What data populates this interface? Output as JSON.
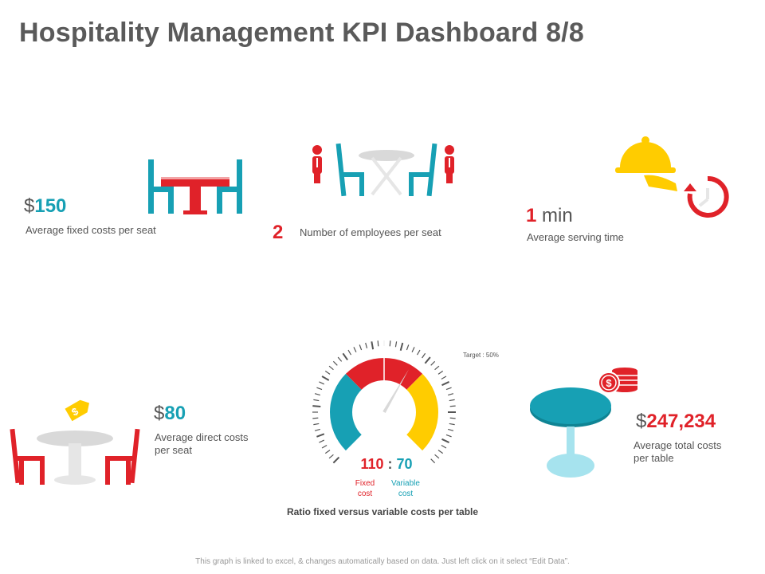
{
  "title": "Hospitality Management KPI Dashboard 8/8",
  "colors": {
    "teal": "#17a0b4",
    "red": "#e02229",
    "yellow": "#ffcc00",
    "grey": "#d9d9d9"
  },
  "kpis": {
    "fixed_cost_per_seat": {
      "currency": "$",
      "value": "150",
      "label": "Average fixed costs per seat",
      "icon": "dining-table-chairs-icon"
    },
    "employees_per_seat": {
      "value": "2",
      "label": "Number of employees per seat",
      "icon": "staff-table-icon"
    },
    "serving_time": {
      "value": "1",
      "unit": " min",
      "label": "Average serving time",
      "icon": "serving-cloche-icon"
    },
    "direct_cost_per_seat": {
      "currency": "$",
      "value": "80",
      "label_line1": "Average direct costs",
      "label_line2": "per seat",
      "icon": "price-tag-table-icon"
    },
    "total_cost_per_table": {
      "currency": "$",
      "value": "247,234",
      "label_line1": "Average total costs",
      "label_line2": "per table",
      "icon": "round-table-coins-icon"
    }
  },
  "gauge": {
    "target_label": "Target : 50%",
    "target_percent": 50,
    "fixed_value": "110",
    "separator": " : ",
    "variable_value": "70",
    "fixed_label_line1": "Fixed",
    "fixed_label_line2": "cost",
    "variable_label_line1": "Variable",
    "variable_label_line2": "cost",
    "caption": "Ratio fixed versus variable costs per table"
  },
  "footer": "This graph is linked to excel, & changes automatically based on data. Just left click on it select “Edit Data”."
}
